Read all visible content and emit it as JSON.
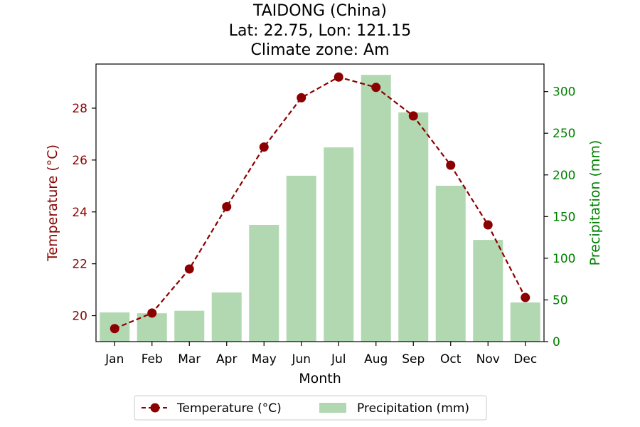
{
  "chart_data": {
    "type": "bar+line",
    "title_lines": [
      "TAIDONG (China)",
      "Lat: 22.75, Lon: 121.15",
      "Climate zone: Am"
    ],
    "xlabel": "Month",
    "ylabel_left": "Temperature (°C)",
    "ylabel_right": "Precipitation (mm)",
    "categories": [
      "Jan",
      "Feb",
      "Mar",
      "Apr",
      "May",
      "Jun",
      "Jul",
      "Aug",
      "Sep",
      "Oct",
      "Nov",
      "Dec"
    ],
    "ylim_left": [
      19.0,
      29.7
    ],
    "yticks_left": [
      20,
      22,
      24,
      26,
      28
    ],
    "ylim_right": [
      0,
      333
    ],
    "yticks_right": [
      0,
      50,
      100,
      150,
      200,
      250,
      300
    ],
    "series": [
      {
        "name": "Temperature (°C)",
        "kind": "line",
        "axis": "left",
        "color": "#8b0000",
        "values": [
          19.5,
          20.1,
          21.8,
          24.2,
          26.5,
          28.4,
          29.2,
          28.8,
          27.7,
          25.8,
          23.5,
          20.7
        ]
      },
      {
        "name": "Precipitation (mm)",
        "kind": "bar",
        "axis": "right",
        "color": "#b2d8b2",
        "values": [
          35,
          34,
          37,
          59,
          140,
          199,
          233,
          320,
          275,
          187,
          122,
          47
        ]
      }
    ],
    "legend_position": "bottom-center",
    "grid": false,
    "colors": {
      "left_axis": "#8b0000",
      "right_axis": "#008000",
      "axis": "#000000"
    }
  }
}
